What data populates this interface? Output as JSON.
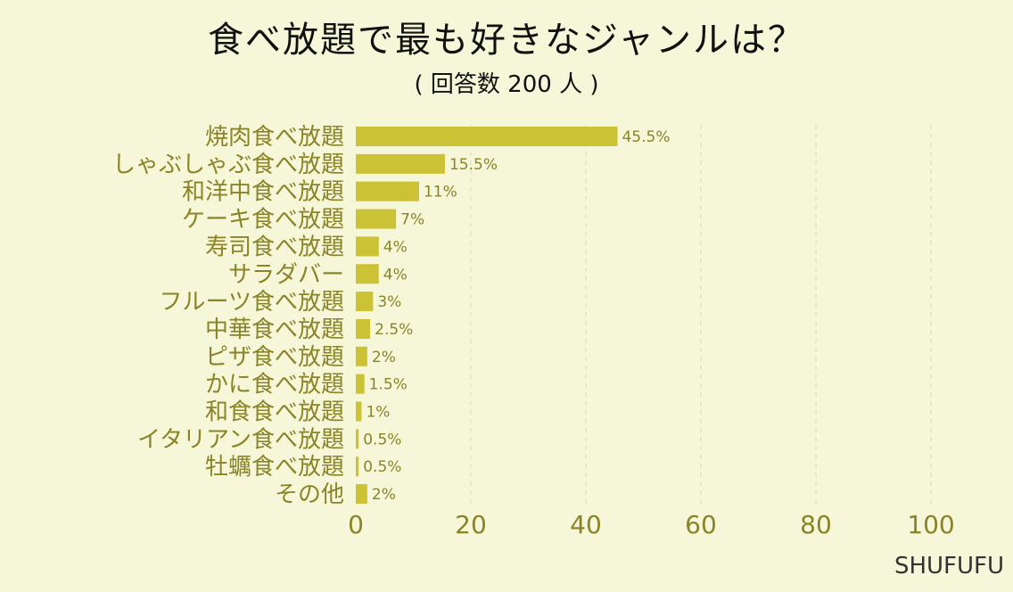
{
  "header": {
    "title": "食べ放題で最も好きなジャンルは？",
    "subtitle": "( 回答数 200 人 )"
  },
  "brand": "SHUFUFU",
  "colors": {
    "background": "#f6f6d8",
    "bar": "#cbc236",
    "label": "#8a8428",
    "grid": "#d9d8bd"
  },
  "chart_data": {
    "type": "bar",
    "orientation": "horizontal",
    "title": "食べ放題で最も好きなジャンルは？",
    "subtitle": "( 回答数 200 人 )",
    "categories": [
      "焼肉食べ放題",
      "しゃぶしゃぶ食べ放題",
      "和洋中食べ放題",
      "ケーキ食べ放題",
      "寿司食べ放題",
      "サラダバー",
      "フルーツ食べ放題",
      "中華食べ放題",
      "ピザ食べ放題",
      "かに食べ放題",
      "和食食べ放題",
      "イタリアン食べ放題",
      "牡蠣食べ放題",
      "その他"
    ],
    "values": [
      45.5,
      15.5,
      11,
      7,
      4,
      4,
      3,
      2.5,
      2,
      1.5,
      1,
      0.5,
      0.5,
      2
    ],
    "value_labels": [
      "45.5%",
      "15.5%",
      "11%",
      "7%",
      "4%",
      "4%",
      "3%",
      "2.5%",
      "2%",
      "1.5%",
      "1%",
      "0.5%",
      "0.5%",
      "2%"
    ],
    "xlim": [
      0,
      100
    ],
    "xticks": [
      0,
      20,
      40,
      60,
      80,
      100
    ],
    "grid": true,
    "xlabel": "",
    "ylabel": ""
  }
}
